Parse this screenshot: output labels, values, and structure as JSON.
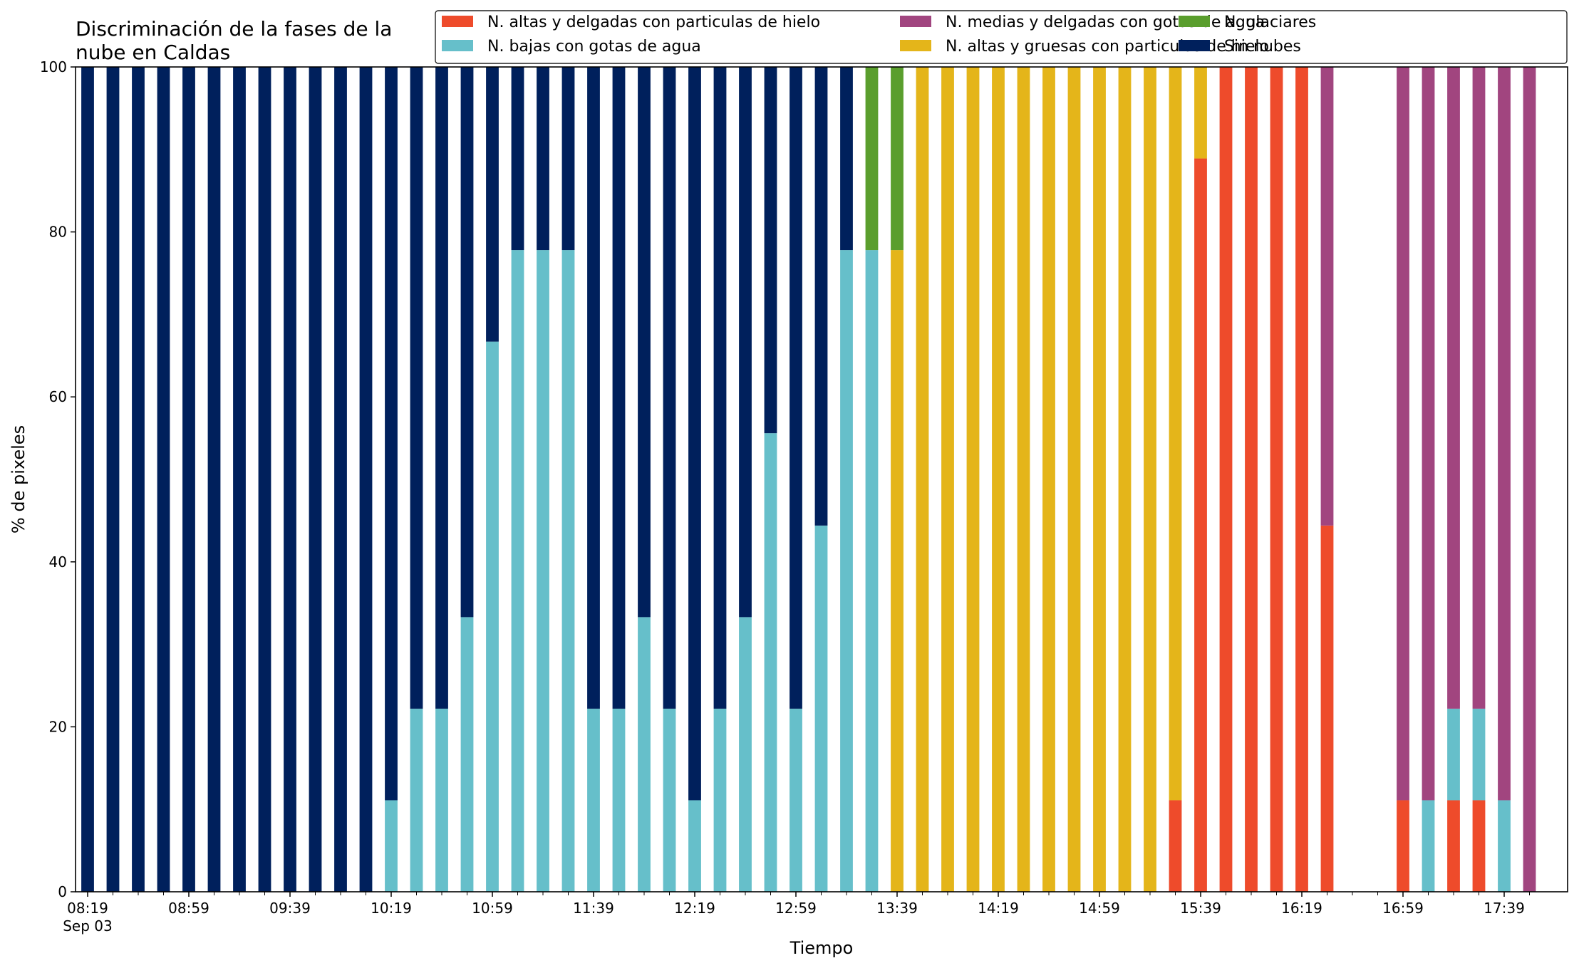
{
  "chart_data": {
    "type": "bar",
    "stacked": true,
    "title": "Discriminación de la fases de la\nnube en Caldas",
    "xlabel": "Tiempo",
    "ylabel": "% de pixeles",
    "ylim": [
      0,
      100
    ],
    "yticks": [
      0,
      20,
      40,
      60,
      80,
      100
    ],
    "legend_position": "top-right",
    "grid": false,
    "x_start": "08:19",
    "x_step_minutes": 10,
    "x_count": 58,
    "x_tick_labels": [
      "08:19",
      "08:59",
      "09:39",
      "10:19",
      "10:59",
      "11:39",
      "12:19",
      "12:59",
      "13:39",
      "14:19",
      "14:59",
      "15:39",
      "16:19",
      "16:59",
      "17:39"
    ],
    "x_date_label": "Sep 03",
    "x_labels": [
      "08:19",
      "08:29",
      "08:39",
      "08:49",
      "08:59",
      "09:09",
      "09:19",
      "09:29",
      "09:39",
      "09:49",
      "09:59",
      "10:09",
      "10:19",
      "10:29",
      "10:39",
      "10:49",
      "10:59",
      "11:09",
      "11:19",
      "11:29",
      "11:39",
      "11:49",
      "11:59",
      "12:09",
      "12:19",
      "12:29",
      "12:39",
      "12:49",
      "12:59",
      "13:09",
      "13:19",
      "13:29",
      "13:39",
      "13:49",
      "13:59",
      "14:09",
      "14:19",
      "14:29",
      "14:39",
      "14:49",
      "14:59",
      "15:09",
      "15:19",
      "15:29",
      "15:39",
      "15:49",
      "15:59",
      "16:09",
      "16:19",
      "16:29",
      "16:39",
      "16:49",
      "16:59",
      "17:09",
      "17:19",
      "17:29",
      "17:39",
      "17:49"
    ],
    "series": [
      {
        "name": "N. altas y delgadas con particulas de hielo",
        "color": "#ee4b2b",
        "values": [
          0,
          0,
          0,
          0,
          0,
          0,
          0,
          0,
          0,
          0,
          0,
          0,
          0,
          0,
          0,
          0,
          0,
          0,
          0,
          0,
          0,
          0,
          0,
          0,
          0,
          0,
          0,
          0,
          0,
          0,
          0,
          0,
          0,
          0,
          0,
          0,
          0,
          0,
          0,
          0,
          0,
          0,
          0,
          11.1,
          88.9,
          100,
          100,
          100,
          100,
          44.4,
          0,
          0,
          11.1,
          0,
          11.1,
          11.1,
          0,
          0
        ]
      },
      {
        "name": "N. bajas con gotas de agua",
        "color": "#66bfca",
        "values": [
          0,
          0,
          0,
          0,
          0,
          0,
          0,
          0,
          0,
          0,
          0,
          0,
          11.1,
          22.2,
          22.2,
          33.3,
          66.7,
          77.8,
          77.8,
          77.8,
          22.2,
          22.2,
          33.3,
          22.2,
          11.1,
          22.2,
          33.3,
          55.6,
          22.2,
          44.4,
          77.8,
          77.8,
          0,
          0,
          0,
          0,
          0,
          0,
          0,
          0,
          0,
          0,
          0,
          0,
          0,
          0,
          0,
          0,
          0,
          0,
          0,
          0,
          0,
          11.1,
          11.1,
          11.1,
          11.1,
          0
        ]
      },
      {
        "name": "N. medias y delgadas con gotas de agua",
        "color": "#a1457f",
        "values": [
          0,
          0,
          0,
          0,
          0,
          0,
          0,
          0,
          0,
          0,
          0,
          0,
          0,
          0,
          0,
          0,
          0,
          0,
          0,
          0,
          0,
          0,
          0,
          0,
          0,
          0,
          0,
          0,
          0,
          0,
          0,
          0,
          0,
          0,
          0,
          0,
          0,
          0,
          0,
          0,
          0,
          0,
          0,
          0,
          0,
          0,
          0,
          0,
          0,
          55.6,
          0,
          0,
          88.9,
          88.9,
          77.8,
          77.8,
          88.9,
          100
        ]
      },
      {
        "name": "N. altas y gruesas con particulas de hielo",
        "color": "#e4b51a",
        "values": [
          0,
          0,
          0,
          0,
          0,
          0,
          0,
          0,
          0,
          0,
          0,
          0,
          0,
          0,
          0,
          0,
          0,
          0,
          0,
          0,
          0,
          0,
          0,
          0,
          0,
          0,
          0,
          0,
          0,
          0,
          0,
          0,
          77.8,
          100,
          100,
          100,
          100,
          100,
          100,
          100,
          100,
          100,
          100,
          88.9,
          11.1,
          0,
          0,
          0,
          0,
          0,
          0,
          0,
          0,
          0,
          0,
          0,
          0,
          0
        ]
      },
      {
        "name": "N. glaciares",
        "color": "#5a9e2d",
        "values": [
          0,
          0,
          0,
          0,
          0,
          0,
          0,
          0,
          0,
          0,
          0,
          0,
          0,
          0,
          0,
          0,
          0,
          0,
          0,
          0,
          0,
          0,
          0,
          0,
          0,
          0,
          0,
          0,
          0,
          0,
          0,
          22.2,
          22.2,
          0,
          0,
          0,
          0,
          0,
          0,
          0,
          0,
          0,
          0,
          0,
          0,
          0,
          0,
          0,
          0,
          0,
          0,
          0,
          0,
          0,
          0,
          0,
          0,
          0
        ]
      },
      {
        "name": "Sin nubes",
        "color": "#00205c",
        "values": [
          100,
          100,
          100,
          100,
          100,
          100,
          100,
          100,
          100,
          100,
          100,
          100,
          88.9,
          77.8,
          77.8,
          66.7,
          33.3,
          22.2,
          22.2,
          22.2,
          77.8,
          77.8,
          66.7,
          77.8,
          88.9,
          77.8,
          66.7,
          44.4,
          77.8,
          55.6,
          22.2,
          0,
          0,
          0,
          0,
          0,
          0,
          0,
          0,
          0,
          0,
          0,
          0,
          0,
          0,
          0,
          0,
          0,
          0,
          0,
          0,
          0,
          0,
          0,
          0,
          0,
          0,
          0
        ]
      }
    ],
    "legend": [
      "N. altas y delgadas con particulas de hielo",
      "N. bajas con gotas de agua",
      "N. medias y delgadas con gotas de agua",
      "N. altas y gruesas con particulas de hielo",
      "N. glaciares",
      "Sin nubes"
    ]
  }
}
